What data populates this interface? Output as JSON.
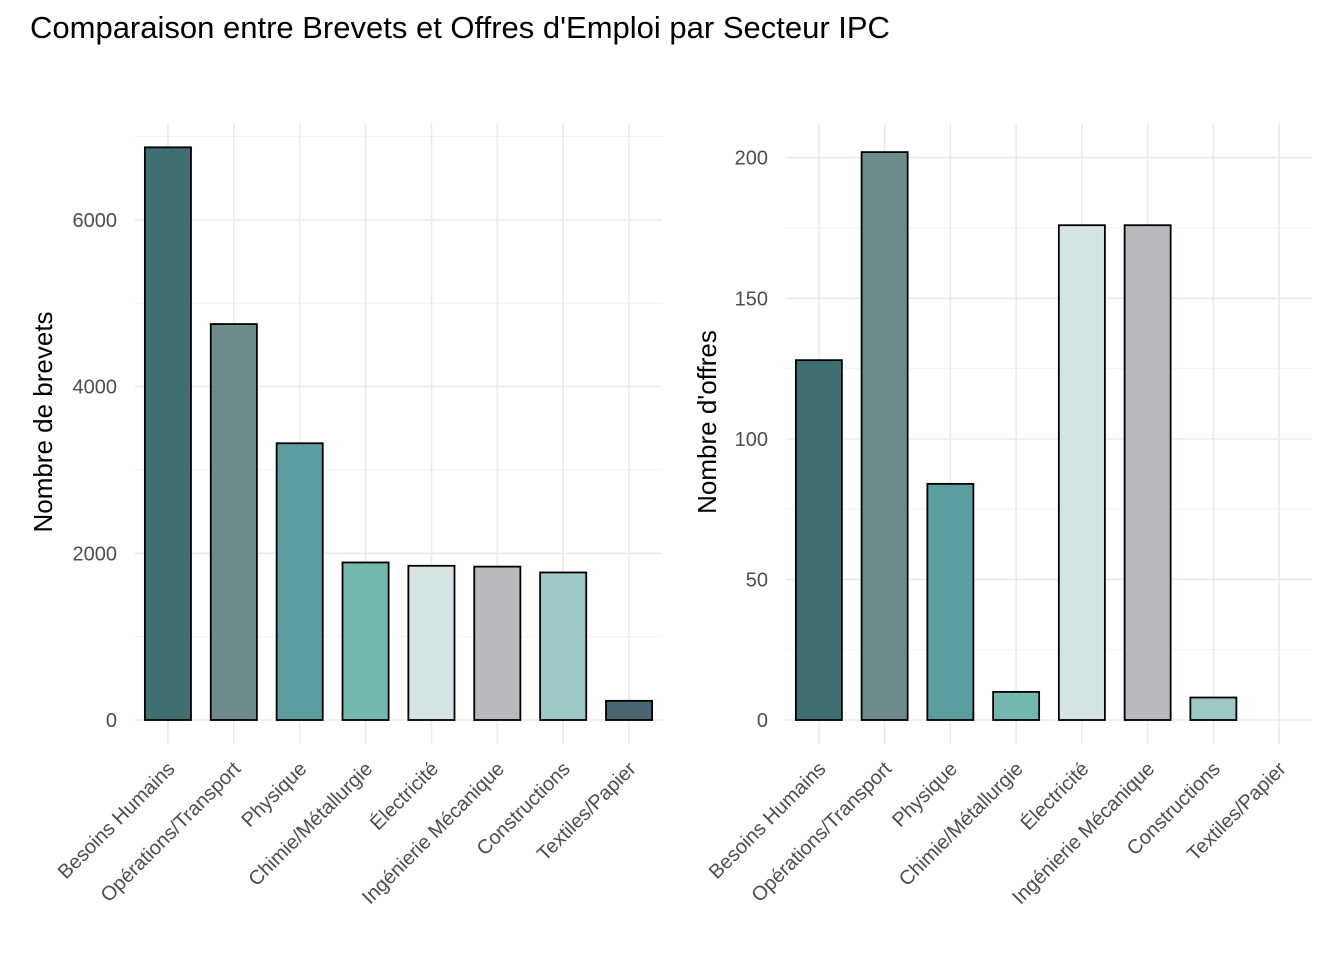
{
  "title": "Comparaison entre Brevets et Offres d'Emploi par Secteur IPC",
  "palette": [
    "#3f6f70",
    "#6e8b8b",
    "#5c9ea0",
    "#72b8ae",
    "#d4e3e3",
    "#b9babd",
    "#9cc8c6",
    "#4a6670"
  ],
  "chart_data": [
    {
      "type": "bar",
      "categories": [
        "Besoins Humains",
        "Opérations/Transport",
        "Physique",
        "Chimie/Métallurgie",
        "Électricité",
        "Ingénierie Mécanique",
        "Constructions",
        "Textiles/Papier"
      ],
      "values": [
        6870,
        4750,
        3320,
        1890,
        1850,
        1840,
        1770,
        230
      ],
      "xlabel": "",
      "ylabel": "Nombre de brevets",
      "ylim": [
        0,
        7150
      ],
      "yticks": [
        0,
        2000,
        4000,
        6000
      ],
      "grid": true
    },
    {
      "type": "bar",
      "categories": [
        "Besoins Humains",
        "Opérations/Transport",
        "Physique",
        "Chimie/Métallurgie",
        "Électricité",
        "Ingénierie Mécanique",
        "Constructions",
        "Textiles/Papier"
      ],
      "values": [
        128,
        202,
        84,
        10,
        176,
        176,
        8,
        0
      ],
      "xlabel": "",
      "ylabel": "Nombre d'offres",
      "ylim": [
        0,
        212
      ],
      "yticks": [
        0,
        50,
        100,
        150,
        200
      ],
      "grid": true
    }
  ]
}
